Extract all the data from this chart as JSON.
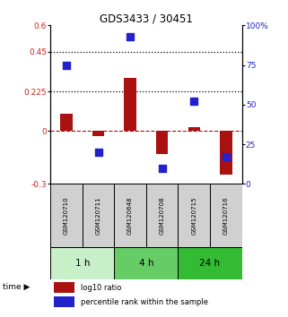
{
  "title": "GDS3433 / 30451",
  "samples": [
    "GSM120710",
    "GSM120711",
    "GSM120648",
    "GSM120708",
    "GSM120715",
    "GSM120716"
  ],
  "log10_ratio": [
    0.1,
    -0.03,
    0.3,
    -0.13,
    0.02,
    -0.25
  ],
  "percentile_rank": [
    75,
    20,
    93,
    10,
    52,
    17
  ],
  "time_groups": [
    {
      "label": "1 h",
      "start": 0,
      "end": 2,
      "color": "#c8f0c8"
    },
    {
      "label": "4 h",
      "start": 2,
      "end": 4,
      "color": "#66cc66"
    },
    {
      "label": "24 h",
      "start": 4,
      "end": 6,
      "color": "#33bb33"
    }
  ],
  "ylim_left": [
    -0.3,
    0.6
  ],
  "ylim_right": [
    0,
    100
  ],
  "yticks_left": [
    -0.3,
    0.0,
    0.225,
    0.45,
    0.6
  ],
  "yticks_right": [
    0,
    25,
    50,
    75,
    100
  ],
  "hlines": [
    0.225,
    0.45
  ],
  "bar_color": "#aa1111",
  "dot_color": "#2222cc",
  "bar_width": 0.38,
  "dot_size": 28,
  "background_color": "#ffffff",
  "legend_labels": [
    "log10 ratio",
    "percentile rank within the sample"
  ],
  "sample_box_color": "#d0d0d0"
}
